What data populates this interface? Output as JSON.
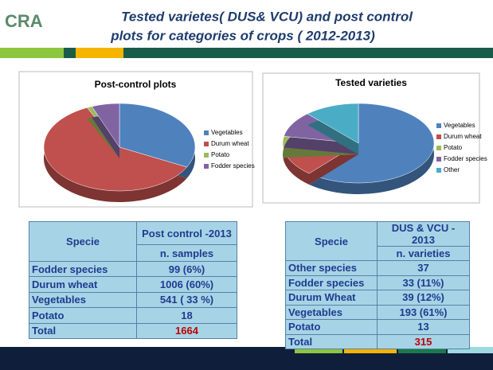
{
  "header": {
    "logo": "CRA",
    "title_lines": [
      "Tested varietes( DUS& VCU) and post control",
      "plots for categories of crops ( 2012-2013)"
    ]
  },
  "chart_data": [
    {
      "type": "pie",
      "title": "Post-control plots",
      "categories": [
        "Vegetables",
        "Durum wheat",
        "Potato",
        "Fodder species"
      ],
      "values": [
        541,
        1006,
        18,
        99
      ],
      "colors": [
        "#4f81bd",
        "#c0504d",
        "#9bbb59",
        "#8064a2"
      ]
    },
    {
      "type": "pie",
      "title": "Tested varieties",
      "categories": [
        "Vegetables",
        "Durum wheat",
        "Potato",
        "Fodder species",
        "Other"
      ],
      "values": [
        193,
        39,
        13,
        33,
        37
      ],
      "colors": [
        "#4f81bd",
        "#c0504d",
        "#9bbb59",
        "#8064a2",
        "#4bacc6"
      ]
    }
  ],
  "tables": [
    {
      "head": [
        "Specie",
        "Post control -2013"
      ],
      "subhead": "n. samples",
      "rows": [
        [
          "Fodder species",
          "99 (6%)"
        ],
        [
          "Durum wheat",
          "1006 (60%)"
        ],
        [
          "Vegetables",
          "541 ( 33 %)"
        ],
        [
          "Potato",
          "18"
        ],
        [
          "Total",
          "1664"
        ]
      ]
    },
    {
      "head": [
        "Specie",
        "DUS & VCU -  2013"
      ],
      "subhead": "n. varieties",
      "rows": [
        [
          "Other species",
          "37"
        ],
        [
          "Fodder species",
          "33 (11%)"
        ],
        [
          "Durum Wheat",
          "39 (12%)"
        ],
        [
          "Vegetables",
          "193 (61%)"
        ],
        [
          "Potato",
          "13"
        ],
        [
          "Total",
          "315"
        ]
      ]
    }
  ]
}
